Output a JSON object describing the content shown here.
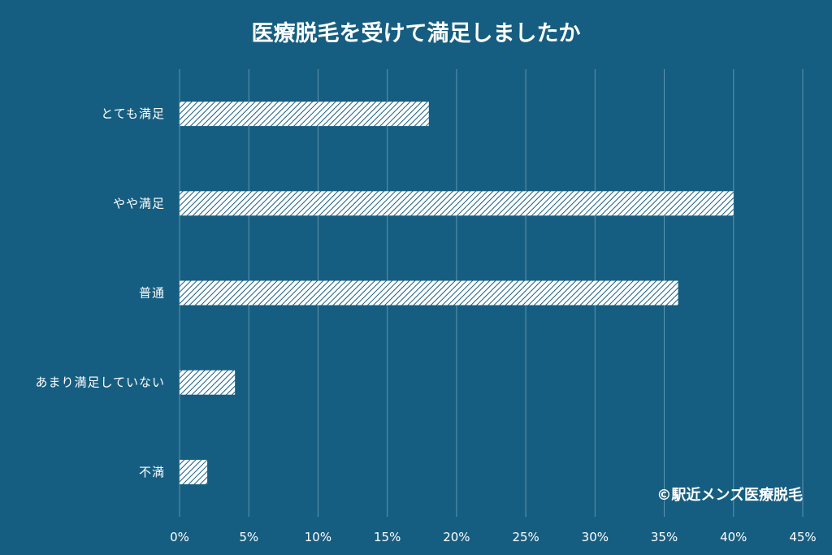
{
  "chart_data": {
    "type": "bar",
    "orientation": "horizontal",
    "title": "医療脱毛を受けて満足しましたか",
    "categories": [
      "とても満足",
      "やや満足",
      "普通",
      "あまり満足していない",
      "不満"
    ],
    "series": [
      {
        "values": [
          18,
          40,
          36,
          4,
          2
        ]
      }
    ],
    "xlim": [
      0,
      45
    ],
    "xticks": [
      0,
      5,
      10,
      15,
      20,
      25,
      30,
      35,
      40,
      45
    ],
    "xtick_labels": [
      "0%",
      "5%",
      "10%",
      "15%",
      "20%",
      "25%",
      "30%",
      "35%",
      "40%",
      "45%"
    ],
    "grid": "vertical",
    "bar_fill": "diagonal-hatch",
    "colors": {
      "background": "#165e81",
      "bar": "#ffffff",
      "hatch": "#165e81",
      "grid": "#5e93ad",
      "text": "#ffffff"
    }
  },
  "credit": "©駅近メンズ医療脱毛"
}
